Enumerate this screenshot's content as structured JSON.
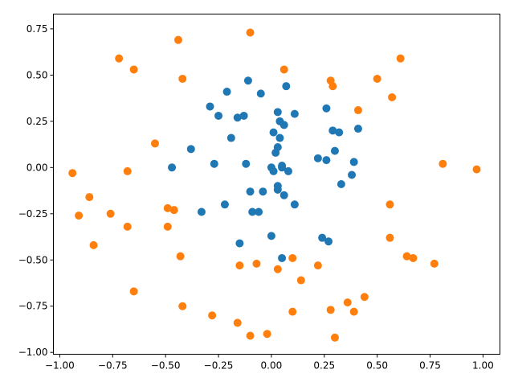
{
  "chart_data": {
    "type": "scatter",
    "title": "",
    "xlabel": "",
    "ylabel": "",
    "xlim": [
      -1.03,
      1.08
    ],
    "ylim": [
      -1.01,
      0.83
    ],
    "grid": false,
    "x_ticks": [
      {
        "value": -1.0,
        "label": "−1.00"
      },
      {
        "value": -0.75,
        "label": "−0.75"
      },
      {
        "value": -0.5,
        "label": "−0.50"
      },
      {
        "value": -0.25,
        "label": "−0.25"
      },
      {
        "value": 0.0,
        "label": "0.00"
      },
      {
        "value": 0.25,
        "label": "0.25"
      },
      {
        "value": 0.5,
        "label": "0.50"
      },
      {
        "value": 0.75,
        "label": "0.75"
      },
      {
        "value": 1.0,
        "label": "1.00"
      }
    ],
    "y_ticks": [
      {
        "value": 0.75,
        "label": "0.75"
      },
      {
        "value": 0.5,
        "label": "0.50"
      },
      {
        "value": 0.25,
        "label": "0.25"
      },
      {
        "value": 0.0,
        "label": "0.00"
      },
      {
        "value": -0.25,
        "label": "−0.25"
      },
      {
        "value": -0.5,
        "label": "−0.50"
      },
      {
        "value": -0.75,
        "label": "−0.75"
      },
      {
        "value": -1.0,
        "label": "−1.00"
      }
    ],
    "series": [
      {
        "color": "#1f77b4",
        "points": [
          [
            -0.11,
            0.47
          ],
          [
            -0.05,
            0.4
          ],
          [
            0.07,
            0.44
          ],
          [
            -0.21,
            0.41
          ],
          [
            -0.29,
            0.33
          ],
          [
            -0.25,
            0.28
          ],
          [
            -0.16,
            0.27
          ],
          [
            -0.13,
            0.28
          ],
          [
            0.03,
            0.3
          ],
          [
            0.04,
            0.25
          ],
          [
            0.06,
            0.23
          ],
          [
            0.11,
            0.29
          ],
          [
            0.26,
            0.32
          ],
          [
            0.01,
            0.19
          ],
          [
            0.04,
            0.16
          ],
          [
            -0.19,
            0.16
          ],
          [
            0.29,
            0.2
          ],
          [
            0.32,
            0.19
          ],
          [
            0.41,
            0.21
          ],
          [
            0.03,
            0.11
          ],
          [
            0.02,
            0.08
          ],
          [
            -0.38,
            0.1
          ],
          [
            0.3,
            0.09
          ],
          [
            0.22,
            0.05
          ],
          [
            0.26,
            0.04
          ],
          [
            0.39,
            0.03
          ],
          [
            -0.47,
            0.0
          ],
          [
            -0.27,
            0.02
          ],
          [
            -0.12,
            0.02
          ],
          [
            0.0,
            0.0
          ],
          [
            0.01,
            -0.02
          ],
          [
            0.05,
            0.0
          ],
          [
            0.05,
            0.01
          ],
          [
            0.08,
            -0.02
          ],
          [
            0.38,
            -0.04
          ],
          [
            0.33,
            -0.09
          ],
          [
            0.03,
            -0.1
          ],
          [
            0.03,
            -0.12
          ],
          [
            -0.1,
            -0.13
          ],
          [
            -0.04,
            -0.13
          ],
          [
            0.06,
            -0.15
          ],
          [
            0.11,
            -0.2
          ],
          [
            -0.22,
            -0.2
          ],
          [
            -0.33,
            -0.24
          ],
          [
            -0.09,
            -0.24
          ],
          [
            -0.06,
            -0.24
          ],
          [
            0.0,
            -0.37
          ],
          [
            0.24,
            -0.38
          ],
          [
            0.27,
            -0.4
          ],
          [
            -0.15,
            -0.41
          ],
          [
            0.05,
            -0.49
          ]
        ]
      },
      {
        "color": "#ff7f0e",
        "points": [
          [
            -0.1,
            0.73
          ],
          [
            -0.44,
            0.69
          ],
          [
            -0.72,
            0.59
          ],
          [
            -0.65,
            0.53
          ],
          [
            -0.42,
            0.48
          ],
          [
            0.06,
            0.53
          ],
          [
            0.28,
            0.47
          ],
          [
            0.29,
            0.44
          ],
          [
            0.5,
            0.48
          ],
          [
            0.61,
            0.59
          ],
          [
            0.57,
            0.38
          ],
          [
            0.41,
            0.31
          ],
          [
            -0.55,
            0.13
          ],
          [
            0.81,
            0.02
          ],
          [
            0.97,
            -0.01
          ],
          [
            -0.94,
            -0.03
          ],
          [
            -0.68,
            -0.02
          ],
          [
            -0.86,
            -0.16
          ],
          [
            -0.91,
            -0.26
          ],
          [
            -0.76,
            -0.25
          ],
          [
            -0.49,
            -0.22
          ],
          [
            -0.46,
            -0.23
          ],
          [
            0.56,
            -0.2
          ],
          [
            -0.68,
            -0.32
          ],
          [
            -0.49,
            -0.32
          ],
          [
            -0.84,
            -0.42
          ],
          [
            -0.43,
            -0.48
          ],
          [
            0.56,
            -0.38
          ],
          [
            0.64,
            -0.48
          ],
          [
            0.67,
            -0.49
          ],
          [
            0.77,
            -0.52
          ],
          [
            -0.15,
            -0.53
          ],
          [
            -0.07,
            -0.52
          ],
          [
            0.1,
            -0.49
          ],
          [
            0.22,
            -0.53
          ],
          [
            0.03,
            -0.55
          ],
          [
            0.14,
            -0.61
          ],
          [
            -0.65,
            -0.67
          ],
          [
            0.44,
            -0.7
          ],
          [
            0.36,
            -0.73
          ],
          [
            -0.42,
            -0.75
          ],
          [
            0.28,
            -0.77
          ],
          [
            0.39,
            -0.78
          ],
          [
            0.1,
            -0.78
          ],
          [
            -0.28,
            -0.8
          ],
          [
            -0.16,
            -0.84
          ],
          [
            -0.1,
            -0.91
          ],
          [
            -0.02,
            -0.9
          ],
          [
            0.3,
            -0.92
          ]
        ]
      }
    ]
  }
}
